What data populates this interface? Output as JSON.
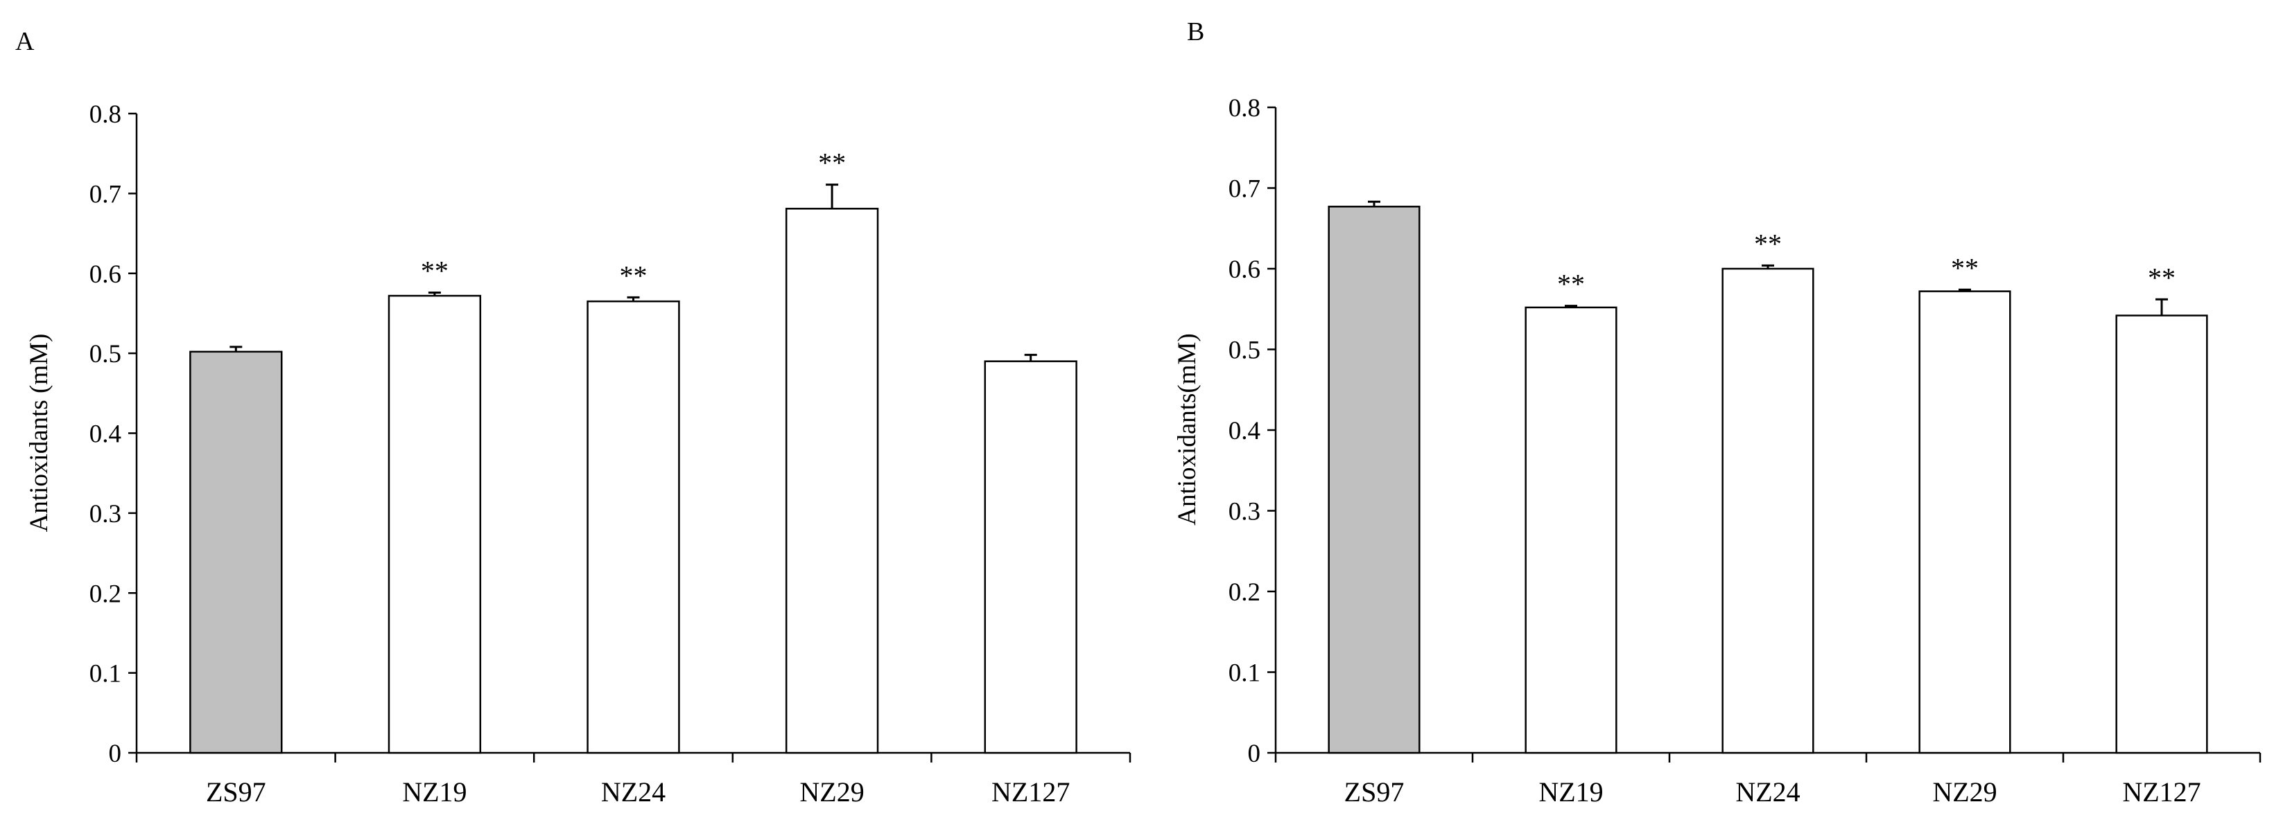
{
  "chart_data": [
    {
      "type": "bar",
      "panel_label": "A",
      "categories": [
        "ZS97",
        "NZ19",
        "NZ24",
        "NZ29",
        "NZ127"
      ],
      "values": [
        0.502,
        0.572,
        0.565,
        0.681,
        0.49
      ],
      "errors": [
        0.006,
        0.004,
        0.005,
        0.03,
        0.008
      ],
      "significance": [
        "",
        "**",
        "**",
        "**",
        ""
      ],
      "bar_colors": [
        "#c0c0c0",
        "#ffffff",
        "#ffffff",
        "#ffffff",
        "#ffffff"
      ],
      "ylabel": "Antioxidants (mM)",
      "xlabel": "",
      "ylim": [
        0,
        0.8
      ],
      "yticks": [
        "0",
        "0.1",
        "0.2",
        "0.3",
        "0.4",
        "0.5",
        "0.6",
        "0.7",
        "0.8"
      ],
      "grid": false
    },
    {
      "type": "bar",
      "panel_label": "B",
      "categories": [
        "ZS97",
        "NZ19",
        "NZ24",
        "NZ29",
        "NZ127"
      ],
      "values": [
        0.677,
        0.552,
        0.6,
        0.572,
        0.542
      ],
      "errors": [
        0.006,
        0.002,
        0.004,
        0.002,
        0.02
      ],
      "significance": [
        "",
        "**",
        "**",
        "**",
        "**"
      ],
      "bar_colors": [
        "#c0c0c0",
        "#ffffff",
        "#ffffff",
        "#ffffff",
        "#ffffff"
      ],
      "ylabel": "Antioxidants(mM)",
      "xlabel": "",
      "ylim": [
        0,
        0.8
      ],
      "yticks": [
        "0",
        "0.1",
        "0.2",
        "0.3",
        "0.4",
        "0.5",
        "0.6",
        "0.7",
        "0.8"
      ],
      "grid": false
    }
  ]
}
